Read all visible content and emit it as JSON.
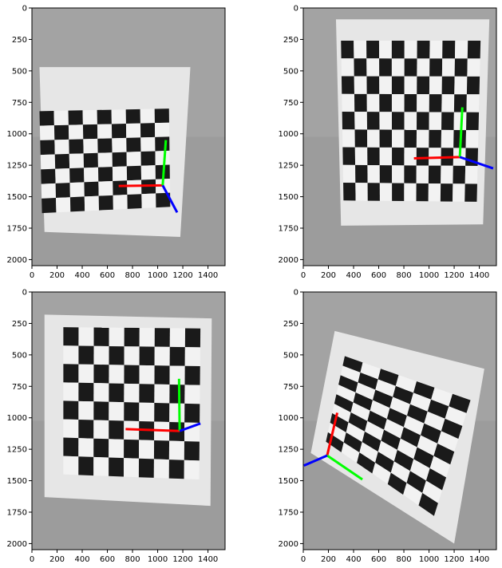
{
  "figure": {
    "panels": [
      {
        "id": "top-left",
        "x_ticks": [
          "0",
          "200",
          "400",
          "600",
          "800",
          "1000",
          "1200",
          "1400"
        ],
        "y_ticks": [
          "0",
          "250",
          "500",
          "750",
          "1000",
          "1250",
          "1500",
          "1750",
          "2000"
        ],
        "image": {
          "board_corners_data": [
            [
              60,
              820
            ],
            [
              1090,
              800
            ],
            [
              1100,
              1580
            ],
            [
              80,
              1630
            ]
          ],
          "paper_corners_data": [
            [
              60,
              470
            ],
            [
              1260,
              470
            ],
            [
              1180,
              1820
            ],
            [
              100,
              1780
            ]
          ],
          "rows": 7,
          "cols": 9,
          "rotation_deg": -2
        },
        "axes_overlay": {
          "origin_data": [
            1040,
            1410
          ],
          "x_axis_end_data": [
            690,
            1415
          ],
          "y_axis_end_data": [
            1065,
            1050
          ],
          "z_axis_end_data": [
            1155,
            1625
          ]
        }
      },
      {
        "id": "top-right",
        "x_ticks": [
          "0",
          "200",
          "400",
          "600",
          "800",
          "1000",
          "1200",
          "1400"
        ],
        "y_ticks": [
          "0",
          "250",
          "500",
          "750",
          "1000",
          "1250",
          "1500",
          "1750",
          "2000"
        ],
        "image": {
          "board_corners_data": [
            [
              300,
              260
            ],
            [
              1410,
              260
            ],
            [
              1380,
              1540
            ],
            [
              320,
              1530
            ]
          ],
          "paper_corners_data": [
            [
              260,
              90
            ],
            [
              1480,
              90
            ],
            [
              1430,
              1720
            ],
            [
              300,
              1730
            ]
          ],
          "rows": 9,
          "cols": 11,
          "rotation_deg": -1
        },
        "axes_overlay": {
          "origin_data": [
            1245,
            1185
          ],
          "x_axis_end_data": [
            880,
            1195
          ],
          "y_axis_end_data": [
            1265,
            790
          ],
          "z_axis_end_data": [
            1510,
            1275
          ]
        }
      },
      {
        "id": "bottom-left",
        "x_ticks": [
          "0",
          "200",
          "400",
          "600",
          "800",
          "1000",
          "1200",
          "1400"
        ],
        "y_ticks": [
          "0",
          "250",
          "500",
          "750",
          "1000",
          "1250",
          "1500",
          "1750",
          "2000"
        ],
        "image": {
          "board_corners_data": [
            [
              250,
              280
            ],
            [
              1340,
              290
            ],
            [
              1330,
              1490
            ],
            [
              250,
              1450
            ]
          ],
          "paper_corners_data": [
            [
              100,
              180
            ],
            [
              1430,
              210
            ],
            [
              1420,
              1700
            ],
            [
              100,
              1630
            ]
          ],
          "rows": 8,
          "cols": 9,
          "rotation_deg": 1
        },
        "axes_overlay": {
          "origin_data": [
            1175,
            1105
          ],
          "x_axis_end_data": [
            745,
            1090
          ],
          "y_axis_end_data": [
            1170,
            690
          ],
          "z_axis_end_data": [
            1340,
            1045
          ]
        }
      },
      {
        "id": "bottom-right",
        "x_ticks": [
          "0",
          "200",
          "400",
          "600",
          "800",
          "1000",
          "1200",
          "1400"
        ],
        "y_ticks": [
          "0",
          "250",
          "500",
          "750",
          "1000",
          "1250",
          "1500",
          "1750",
          "2000"
        ],
        "image": {
          "board_corners_data": [
            [
              180,
              1190
            ],
            [
              330,
              510
            ],
            [
              1330,
              860
            ],
            [
              1040,
              1780
            ]
          ],
          "paper_corners_data": [
            [
              60,
              1280
            ],
            [
              250,
              310
            ],
            [
              1440,
              610
            ],
            [
              1200,
              2000
            ]
          ],
          "rows": 7,
          "cols": 9,
          "rotation_deg": 20
        },
        "axes_overlay": {
          "origin_data": [
            190,
            1300
          ],
          "x_axis_end_data": [
            270,
            960
          ],
          "y_axis_end_data": [
            470,
            1490
          ],
          "z_axis_end_data": [
            5,
            1380
          ]
        }
      }
    ],
    "colors": {
      "x_axis": "#ff0000",
      "y_axis": "#00ff00",
      "z_axis": "#0000ff",
      "board_dark": "#1a1a1a",
      "board_light": "#f2f2f2",
      "paper": "#e6e6e6",
      "background": "#9c9c9c"
    }
  }
}
